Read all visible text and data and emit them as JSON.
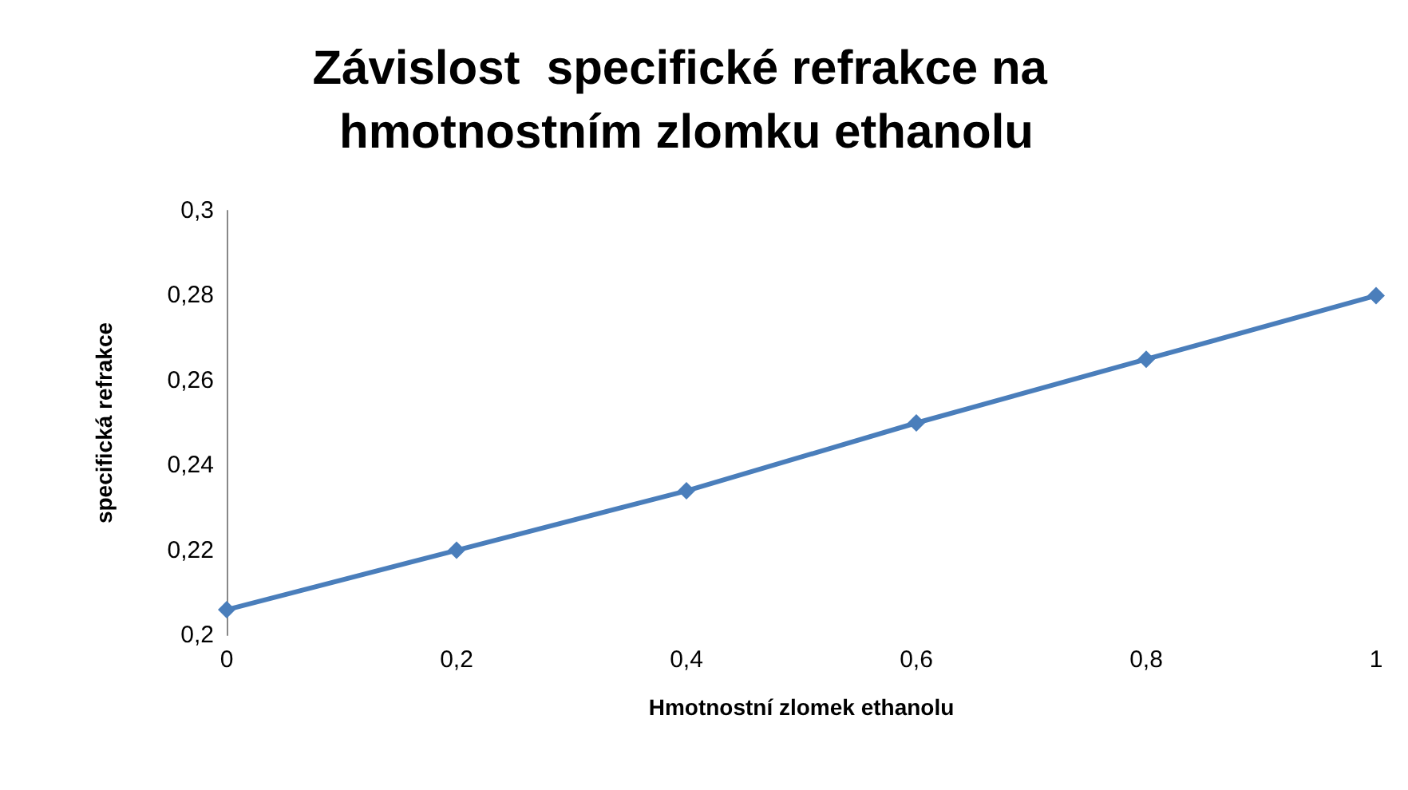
{
  "chart_data": {
    "type": "line",
    "title": "Závislost  specifické refrakce na hmotnostním zlomku ethanolu",
    "xlabel": "Hmotnostní zlomek ethanolu",
    "ylabel": "specifická refrakce",
    "x": [
      0,
      0.2,
      0.4,
      0.6,
      0.8,
      1
    ],
    "series": [
      {
        "color": "#4a7ebb",
        "values": [
          0.206,
          0.22,
          0.234,
          0.25,
          0.265,
          0.28
        ]
      }
    ],
    "xlim": [
      0,
      1
    ],
    "xticks": [
      {
        "value": 0,
        "label": "0"
      },
      {
        "value": 0.2,
        "label": "0,2"
      },
      {
        "value": 0.4,
        "label": "0,4"
      },
      {
        "value": 0.6,
        "label": "0,6"
      },
      {
        "value": 0.8,
        "label": "0,8"
      },
      {
        "value": 1,
        "label": "1"
      }
    ],
    "ylim": [
      0.2,
      0.3
    ],
    "yticks": [
      {
        "value": 0.2,
        "label": "0,2"
      },
      {
        "value": 0.22,
        "label": "0,22"
      },
      {
        "value": 0.24,
        "label": "0,24"
      },
      {
        "value": 0.26,
        "label": "0,26"
      },
      {
        "value": 0.28,
        "label": "0,28"
      },
      {
        "value": 0.3,
        "label": "0,3"
      }
    ],
    "marker": "diamond",
    "line_style": "solid",
    "grid": false
  }
}
